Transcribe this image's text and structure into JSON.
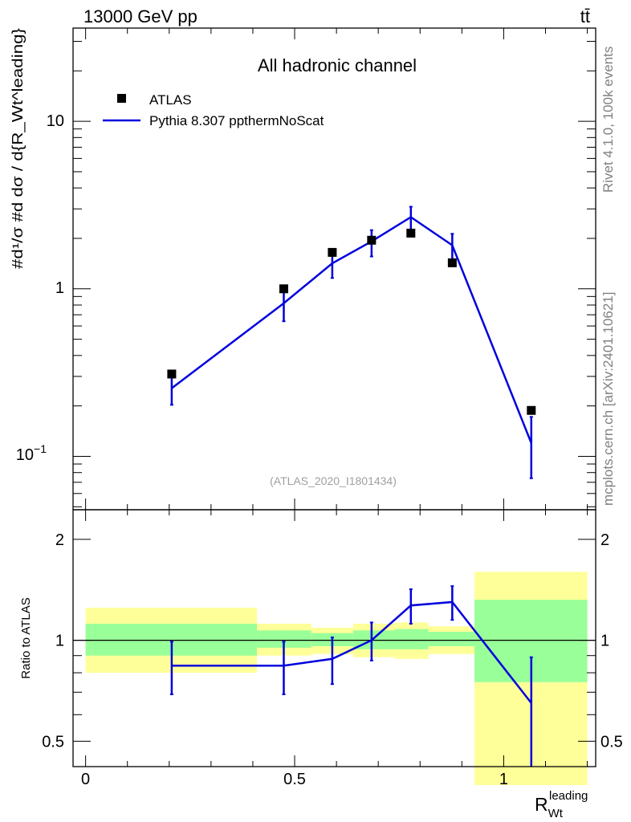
{
  "header": {
    "energy_label": "13000 GeV pp",
    "process_label": "tt̄"
  },
  "side": {
    "rivet_label": "Rivet 4.1.0,  100k events",
    "mcplots_label": "mcplots.cern.ch [arXiv:2401.10621]"
  },
  "chart_data": [
    {
      "type": "scatter",
      "panel": "main",
      "title": "All hadronic channel",
      "analysis_label": "(ATLAS_2020_I1801434)",
      "yscale": "log",
      "ylim": [
        0.048,
        36
      ],
      "xlim": [
        -0.03,
        1.22
      ],
      "ytick_labels": {
        "t0": "10",
        "t0exp": "−1",
        "t1": "1",
        "t2": "10"
      },
      "ylabel": "#d¹/σ #d dσ / d{R_Wt^leading}",
      "series": [
        {
          "name": "ATLAS",
          "kind": "data",
          "x": [
            0.206,
            0.474,
            0.59,
            0.684,
            0.778,
            0.877,
            1.066
          ],
          "y": [
            0.31,
            1.0,
            1.65,
            1.95,
            2.15,
            1.43,
            0.188
          ]
        },
        {
          "name": "Pythia 8.307 ppthermNoScat",
          "kind": "mc",
          "color": "#0000dd",
          "x": [
            0.206,
            0.474,
            0.59,
            0.684,
            0.778,
            0.877,
            1.066
          ],
          "y": [
            0.255,
            0.82,
            1.42,
            1.92,
            2.68,
            1.82,
            0.12
          ],
          "yerr_low": [
            0.052,
            0.18,
            0.26,
            0.36,
            0.45,
            0.33,
            0.046
          ],
          "yerr_high": [
            0.055,
            0.17,
            0.28,
            0.32,
            0.41,
            0.31,
            0.052
          ]
        }
      ]
    },
    {
      "type": "line",
      "panel": "ratio",
      "ylabel": "Ratio to ATLAS",
      "xlabel_main": "R",
      "xlabel_sub": "Wt",
      "xlabel_sup": "leading",
      "ylim": [
        0.42,
        2.45
      ],
      "xticks": [
        "0",
        "0.5",
        "1"
      ],
      "xtick_values": [
        0,
        0.5,
        1
      ],
      "yticks": [
        "0.5",
        "1",
        "2"
      ],
      "ytick_values": [
        0.5,
        1,
        2
      ],
      "bins": [
        {
          "lo": 0.0,
          "hi": 0.41,
          "yellow": [
            0.8,
            1.25
          ],
          "green": [
            0.9,
            1.12
          ]
        },
        {
          "lo": 0.41,
          "hi": 0.54,
          "yellow": [
            0.9,
            1.12
          ],
          "green": [
            0.95,
            1.07
          ]
        },
        {
          "lo": 0.54,
          "hi": 0.64,
          "yellow": [
            0.91,
            1.09
          ],
          "green": [
            0.96,
            1.05
          ]
        },
        {
          "lo": 0.64,
          "hi": 0.74,
          "yellow": [
            0.89,
            1.12
          ],
          "green": [
            0.94,
            1.07
          ]
        },
        {
          "lo": 0.74,
          "hi": 0.82,
          "yellow": [
            0.88,
            1.13
          ],
          "green": [
            0.94,
            1.08
          ]
        },
        {
          "lo": 0.82,
          "hi": 0.93,
          "yellow": [
            0.91,
            1.1
          ],
          "green": [
            0.96,
            1.06
          ]
        },
        {
          "lo": 0.93,
          "hi": 1.2,
          "yellow": [
            0.37,
            1.6
          ],
          "green": [
            0.75,
            1.32
          ]
        }
      ],
      "series": [
        {
          "name": "Pythia 8.307 ppthermNoScat",
          "color": "#0000dd",
          "x": [
            0.206,
            0.474,
            0.59,
            0.684,
            0.778,
            0.877,
            1.066
          ],
          "y": [
            0.84,
            0.84,
            0.88,
            1.0,
            1.27,
            1.3,
            0.65
          ],
          "err": [
            0.15,
            0.15,
            0.14,
            0.13,
            0.15,
            0.15,
            0.24
          ]
        }
      ]
    }
  ],
  "colors": {
    "mc": "#0000dd",
    "data": "#000000",
    "band_outer": "#ffff99",
    "band_inner": "#99ff99",
    "side_text": "#808080"
  }
}
